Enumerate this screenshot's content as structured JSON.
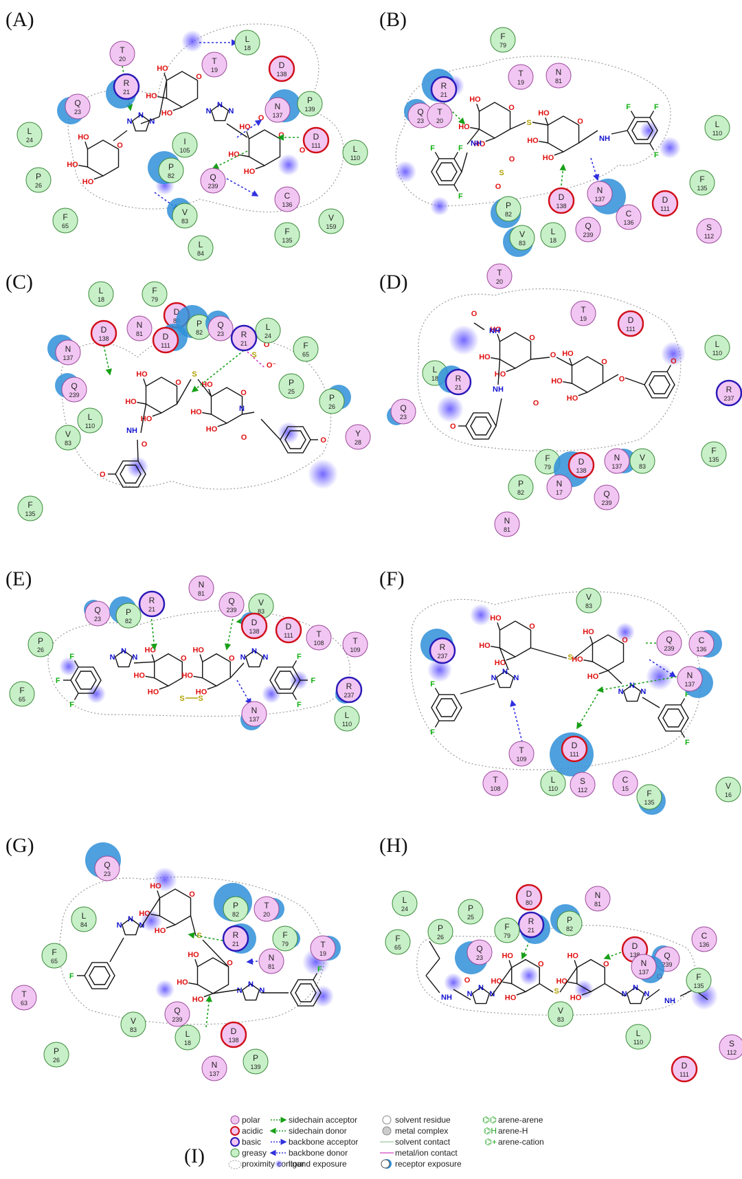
{
  "colors": {
    "polar": "#f2c6f2",
    "acidic_ring": "#d0101a",
    "basic_ring": "#2a1ab8",
    "greasy": "#c8f0c8",
    "greasy_ring": "#3a8a3a",
    "polar_ring": "#9a4a9a",
    "exposure": "#2f8fd8",
    "ligand_exposure": "#6a5cff",
    "sidechain": "#18a018",
    "backbone": "#3030e0",
    "metal": "#d040c0",
    "bond": "#111111",
    "oxygen": "#e01010",
    "nitrogen": "#1010d0",
    "sulfur": "#b0a000",
    "fluorine": "#10b010"
  },
  "panels": [
    {
      "label": "(A)",
      "residues": [
        {
          "letter": "T",
          "num": "20",
          "type": "polar"
        },
        {
          "letter": "L",
          "num": "18",
          "type": "greasy"
        },
        {
          "letter": "T",
          "num": "19",
          "type": "polar"
        },
        {
          "letter": "D",
          "num": "138",
          "type": "acidic"
        },
        {
          "letter": "R",
          "num": "21",
          "type": "basic"
        },
        {
          "letter": "Q",
          "num": "23",
          "type": "polar"
        },
        {
          "letter": "N",
          "num": "137",
          "type": "polar"
        },
        {
          "letter": "P",
          "num": "139",
          "type": "greasy"
        },
        {
          "letter": "L",
          "num": "24",
          "type": "greasy"
        },
        {
          "letter": "D",
          "num": "111",
          "type": "acidic"
        },
        {
          "letter": "I",
          "num": "105",
          "type": "greasy"
        },
        {
          "letter": "L",
          "num": "110",
          "type": "greasy"
        },
        {
          "letter": "P",
          "num": "82",
          "type": "greasy"
        },
        {
          "letter": "P",
          "num": "26",
          "type": "greasy"
        },
        {
          "letter": "Q",
          "num": "239",
          "type": "polar"
        },
        {
          "letter": "C",
          "num": "136",
          "type": "polar"
        },
        {
          "letter": "V",
          "num": "83",
          "type": "greasy"
        },
        {
          "letter": "F",
          "num": "65",
          "type": "greasy"
        },
        {
          "letter": "V",
          "num": "159",
          "type": "greasy"
        },
        {
          "letter": "F",
          "num": "135",
          "type": "greasy"
        },
        {
          "letter": "L",
          "num": "84",
          "type": "greasy"
        }
      ]
    },
    {
      "label": "(B)",
      "residues": [
        {
          "letter": "F",
          "num": "79",
          "type": "greasy"
        },
        {
          "letter": "T",
          "num": "19",
          "type": "polar"
        },
        {
          "letter": "N",
          "num": "81",
          "type": "polar"
        },
        {
          "letter": "R",
          "num": "21",
          "type": "basic"
        },
        {
          "letter": "Q",
          "num": "23",
          "type": "polar"
        },
        {
          "letter": "T",
          "num": "20",
          "type": "polar"
        },
        {
          "letter": "L",
          "num": "110",
          "type": "greasy"
        },
        {
          "letter": "F",
          "num": "135",
          "type": "greasy"
        },
        {
          "letter": "D",
          "num": "138",
          "type": "acidic"
        },
        {
          "letter": "N",
          "num": "137",
          "type": "polar"
        },
        {
          "letter": "D",
          "num": "111",
          "type": "acidic"
        },
        {
          "letter": "P",
          "num": "82",
          "type": "greasy"
        },
        {
          "letter": "C",
          "num": "136",
          "type": "polar"
        },
        {
          "letter": "S",
          "num": "112",
          "type": "polar"
        },
        {
          "letter": "V",
          "num": "83",
          "type": "greasy"
        },
        {
          "letter": "L",
          "num": "18",
          "type": "greasy"
        },
        {
          "letter": "Q",
          "num": "239",
          "type": "polar"
        }
      ]
    },
    {
      "label": "(C)",
      "residues": [
        {
          "letter": "L",
          "num": "18",
          "type": "greasy"
        },
        {
          "letter": "F",
          "num": "79",
          "type": "greasy"
        },
        {
          "letter": "D",
          "num": "80",
          "type": "acidic"
        },
        {
          "letter": "D",
          "num": "138",
          "type": "acidic"
        },
        {
          "letter": "N",
          "num": "81",
          "type": "polar"
        },
        {
          "letter": "D",
          "num": "111",
          "type": "acidic"
        },
        {
          "letter": "P",
          "num": "82",
          "type": "greasy"
        },
        {
          "letter": "Q",
          "num": "23",
          "type": "polar"
        },
        {
          "letter": "L",
          "num": "24",
          "type": "greasy"
        },
        {
          "letter": "R",
          "num": "21",
          "type": "basic"
        },
        {
          "letter": "N",
          "num": "137",
          "type": "polar"
        },
        {
          "letter": "F",
          "num": "65",
          "type": "greasy"
        },
        {
          "letter": "P",
          "num": "25",
          "type": "greasy"
        },
        {
          "letter": "Q",
          "num": "239",
          "type": "polar"
        },
        {
          "letter": "P",
          "num": "26",
          "type": "greasy"
        },
        {
          "letter": "L",
          "num": "110",
          "type": "greasy"
        },
        {
          "letter": "V",
          "num": "83",
          "type": "greasy"
        },
        {
          "letter": "Y",
          "num": "28",
          "type": "polar"
        },
        {
          "letter": "F",
          "num": "135",
          "type": "greasy"
        }
      ]
    },
    {
      "label": "(D)",
      "residues": [
        {
          "letter": "T",
          "num": "20",
          "type": "polar"
        },
        {
          "letter": "T",
          "num": "19",
          "type": "polar"
        },
        {
          "letter": "D",
          "num": "111",
          "type": "acidic"
        },
        {
          "letter": "L",
          "num": "110",
          "type": "greasy"
        },
        {
          "letter": "L",
          "num": "18",
          "type": "greasy"
        },
        {
          "letter": "R",
          "num": "21",
          "type": "basic"
        },
        {
          "letter": "R",
          "num": "237",
          "type": "basic"
        },
        {
          "letter": "Q",
          "num": "23",
          "type": "polar"
        },
        {
          "letter": "F",
          "num": "135",
          "type": "greasy"
        },
        {
          "letter": "F",
          "num": "79",
          "type": "greasy"
        },
        {
          "letter": "D",
          "num": "138",
          "type": "acidic"
        },
        {
          "letter": "N",
          "num": "137",
          "type": "polar"
        },
        {
          "letter": "V",
          "num": "83",
          "type": "greasy"
        },
        {
          "letter": "P",
          "num": "82",
          "type": "greasy"
        },
        {
          "letter": "N",
          "num": "17",
          "type": "polar"
        },
        {
          "letter": "Q",
          "num": "239",
          "type": "polar"
        },
        {
          "letter": "N",
          "num": "81",
          "type": "polar"
        }
      ]
    },
    {
      "label": "(E)",
      "residues": [
        {
          "letter": "N",
          "num": "81",
          "type": "polar"
        },
        {
          "letter": "R",
          "num": "21",
          "type": "basic"
        },
        {
          "letter": "Q",
          "num": "239",
          "type": "polar"
        },
        {
          "letter": "V",
          "num": "83",
          "type": "greasy"
        },
        {
          "letter": "Q",
          "num": "23",
          "type": "polar"
        },
        {
          "letter": "P",
          "num": "82",
          "type": "greasy"
        },
        {
          "letter": "D",
          "num": "138",
          "type": "acidic"
        },
        {
          "letter": "D",
          "num": "111",
          "type": "acidic"
        },
        {
          "letter": "T",
          "num": "108",
          "type": "polar"
        },
        {
          "letter": "T",
          "num": "109",
          "type": "polar"
        },
        {
          "letter": "P",
          "num": "26",
          "type": "greasy"
        },
        {
          "letter": "F",
          "num": "65",
          "type": "greasy"
        },
        {
          "letter": "R",
          "num": "237",
          "type": "basic"
        },
        {
          "letter": "N",
          "num": "137",
          "type": "polar"
        },
        {
          "letter": "L",
          "num": "110",
          "type": "greasy"
        }
      ]
    },
    {
      "label": "(F)",
      "residues": [
        {
          "letter": "V",
          "num": "83",
          "type": "greasy"
        },
        {
          "letter": "R",
          "num": "237",
          "type": "basic"
        },
        {
          "letter": "Q",
          "num": "239",
          "type": "polar"
        },
        {
          "letter": "C",
          "num": "136",
          "type": "polar"
        },
        {
          "letter": "N",
          "num": "137",
          "type": "polar"
        },
        {
          "letter": "D",
          "num": "111",
          "type": "acidic"
        },
        {
          "letter": "T",
          "num": "109",
          "type": "polar"
        },
        {
          "letter": "T",
          "num": "108",
          "type": "polar"
        },
        {
          "letter": "L",
          "num": "110",
          "type": "greasy"
        },
        {
          "letter": "S",
          "num": "112",
          "type": "polar"
        },
        {
          "letter": "C",
          "num": "15",
          "type": "polar"
        },
        {
          "letter": "F",
          "num": "135",
          "type": "greasy"
        },
        {
          "letter": "V",
          "num": "16",
          "type": "greasy"
        }
      ]
    },
    {
      "label": "(G)",
      "residues": [
        {
          "letter": "Q",
          "num": "23",
          "type": "polar"
        },
        {
          "letter": "P",
          "num": "82",
          "type": "greasy"
        },
        {
          "letter": "T",
          "num": "20",
          "type": "polar"
        },
        {
          "letter": "L",
          "num": "84",
          "type": "greasy"
        },
        {
          "letter": "R",
          "num": "21",
          "type": "basic"
        },
        {
          "letter": "F",
          "num": "79",
          "type": "greasy"
        },
        {
          "letter": "T",
          "num": "19",
          "type": "polar"
        },
        {
          "letter": "F",
          "num": "65",
          "type": "greasy"
        },
        {
          "letter": "N",
          "num": "81",
          "type": "polar"
        },
        {
          "letter": "T",
          "num": "63",
          "type": "polar"
        },
        {
          "letter": "Q",
          "num": "239",
          "type": "polar"
        },
        {
          "letter": "V",
          "num": "83",
          "type": "greasy"
        },
        {
          "letter": "P",
          "num": "26",
          "type": "greasy"
        },
        {
          "letter": "D",
          "num": "138",
          "type": "acidic"
        },
        {
          "letter": "L",
          "num": "18",
          "type": "greasy"
        },
        {
          "letter": "P",
          "num": "139",
          "type": "greasy"
        },
        {
          "letter": "N",
          "num": "137",
          "type": "polar"
        }
      ]
    },
    {
      "label": "(H)",
      "residues": [
        {
          "letter": "D",
          "num": "80",
          "type": "acidic"
        },
        {
          "letter": "N",
          "num": "81",
          "type": "polar"
        },
        {
          "letter": "L",
          "num": "24",
          "type": "greasy"
        },
        {
          "letter": "P",
          "num": "25",
          "type": "greasy"
        },
        {
          "letter": "R",
          "num": "21",
          "type": "basic"
        },
        {
          "letter": "P",
          "num": "82",
          "type": "greasy"
        },
        {
          "letter": "P",
          "num": "26",
          "type": "greasy"
        },
        {
          "letter": "F",
          "num": "79",
          "type": "greasy"
        },
        {
          "letter": "C",
          "num": "136",
          "type": "polar"
        },
        {
          "letter": "F",
          "num": "65",
          "type": "greasy"
        },
        {
          "letter": "Q",
          "num": "23",
          "type": "polar"
        },
        {
          "letter": "D",
          "num": "138",
          "type": "acidic"
        },
        {
          "letter": "Q",
          "num": "239",
          "type": "polar"
        },
        {
          "letter": "N",
          "num": "137",
          "type": "polar"
        },
        {
          "letter": "F",
          "num": "135",
          "type": "greasy"
        },
        {
          "letter": "V",
          "num": "83",
          "type": "greasy"
        },
        {
          "letter": "L",
          "num": "110",
          "type": "greasy"
        },
        {
          "letter": "S",
          "num": "112",
          "type": "polar"
        },
        {
          "letter": "D",
          "num": "111",
          "type": "acidic"
        }
      ]
    }
  ],
  "legend": {
    "label": "(I)",
    "col1": [
      "polar",
      "acidic",
      "basic",
      "greasy",
      "proximity contour"
    ],
    "col2": [
      "sidechain acceptor",
      "sidechain donor",
      "backbone acceptor",
      "backbone donor",
      "ligand exposure"
    ],
    "col3": [
      "solvent residue",
      "metal complex",
      "solvent contact",
      "metal/ion contact",
      "receptor exposure"
    ],
    "col4": [
      "arene-arene",
      "arene-H",
      "arene-cation"
    ]
  }
}
